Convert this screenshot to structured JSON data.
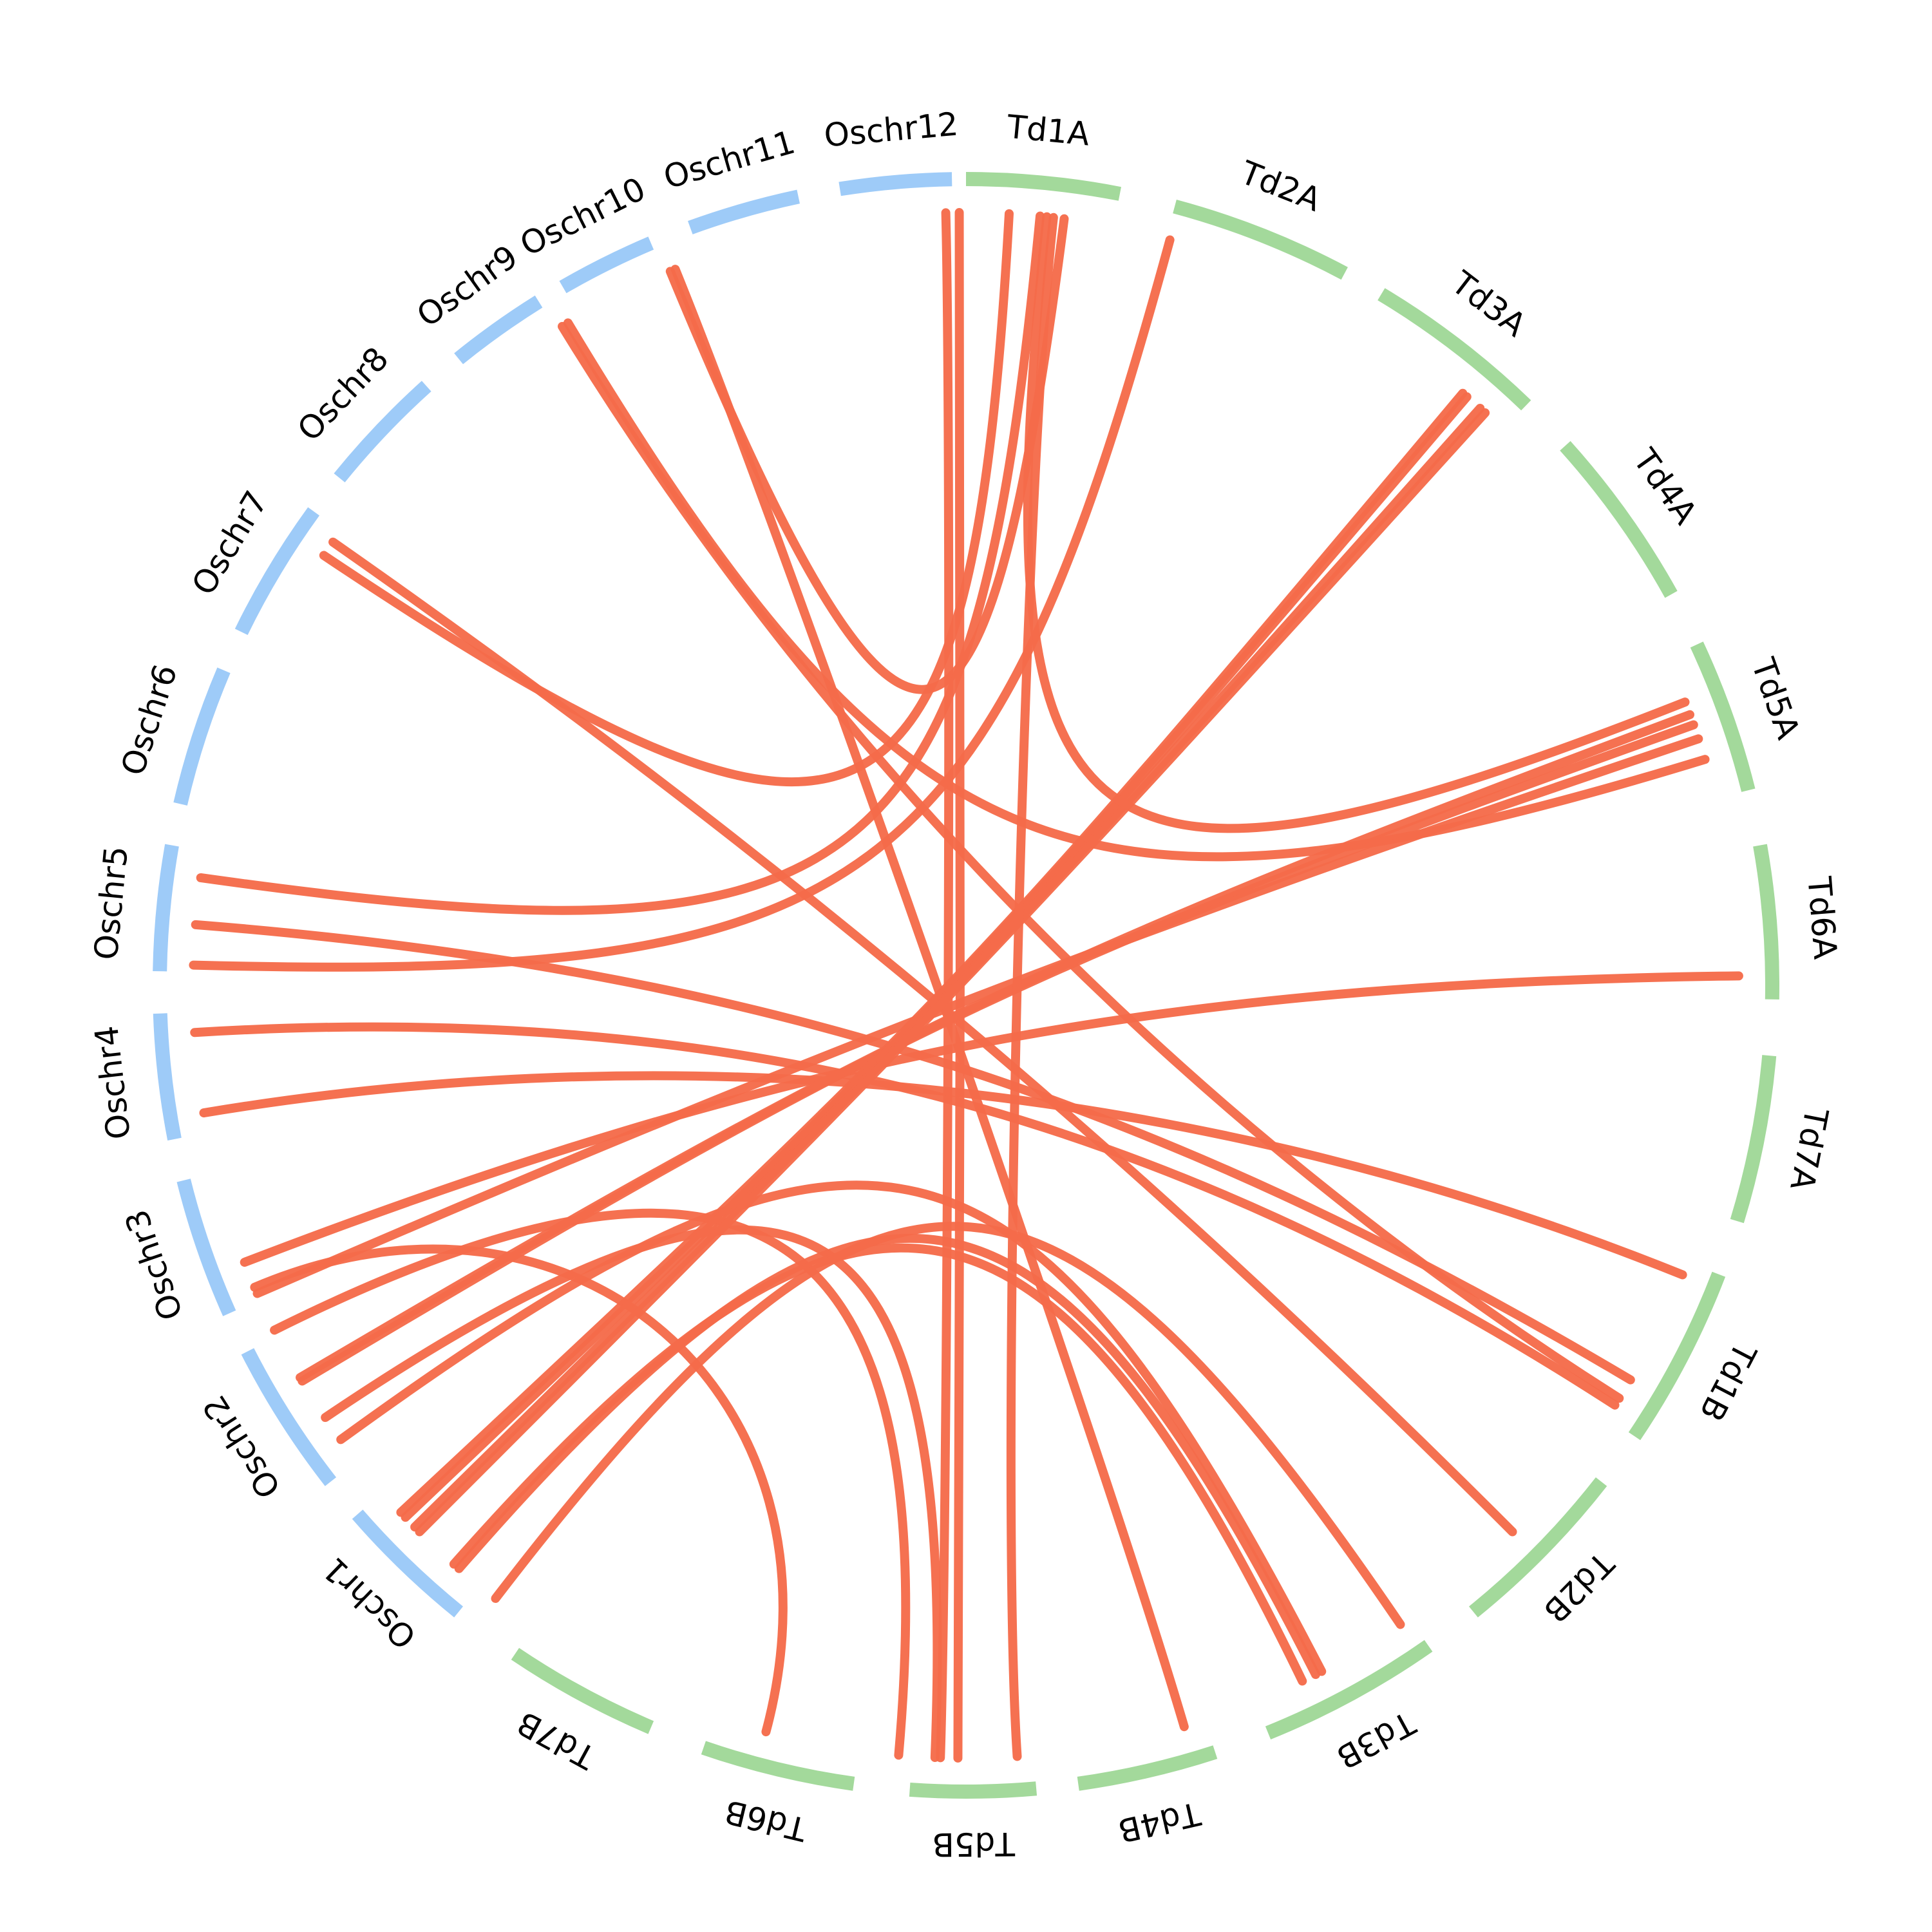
{
  "colors": {
    "rice": "#9ecbf8",
    "wheat": "#a3d99b",
    "link": "#f56b4a",
    "text": "#000000"
  },
  "chromosomes": [
    {
      "id": "Oschr1",
      "label": "Oschr1",
      "group": "rice"
    },
    {
      "id": "Oschr2",
      "label": "Oschr2",
      "group": "rice"
    },
    {
      "id": "Oschr3",
      "label": "Oschr3",
      "group": "rice"
    },
    {
      "id": "Oschr4",
      "label": "Oschr4",
      "group": "rice"
    },
    {
      "id": "Oschr5",
      "label": "Oschr5",
      "group": "rice"
    },
    {
      "id": "Oschr6",
      "label": "Oschr6",
      "group": "rice"
    },
    {
      "id": "Oschr7",
      "label": "Oschr7",
      "group": "rice"
    },
    {
      "id": "Oschr8",
      "label": "Oschr8",
      "group": "rice"
    },
    {
      "id": "Oschr9",
      "label": "Oschr9",
      "group": "rice"
    },
    {
      "id": "Oschr10",
      "label": "Oschr10",
      "group": "rice"
    },
    {
      "id": "Oschr11",
      "label": "Oschr11",
      "group": "rice"
    },
    {
      "id": "Oschr12",
      "label": "Oschr12",
      "group": "rice"
    },
    {
      "id": "Td1A",
      "label": "Td1A",
      "group": "wheat"
    },
    {
      "id": "Td2A",
      "label": "Td2A",
      "group": "wheat"
    },
    {
      "id": "Td3A",
      "label": "Td3A",
      "group": "wheat"
    },
    {
      "id": "Td4A",
      "label": "Td4A",
      "group": "wheat"
    },
    {
      "id": "Td5A",
      "label": "Td5A",
      "group": "wheat"
    },
    {
      "id": "Td6A",
      "label": "Td6A",
      "group": "wheat"
    },
    {
      "id": "Td7A",
      "label": "Td7A",
      "group": "wheat"
    },
    {
      "id": "Td1B",
      "label": "Td1B",
      "group": "wheat"
    },
    {
      "id": "Td2B",
      "label": "Td2B",
      "group": "wheat"
    },
    {
      "id": "Td3B",
      "label": "Td3B",
      "group": "wheat"
    },
    {
      "id": "Td4B",
      "label": "Td4B",
      "group": "wheat"
    },
    {
      "id": "Td5B",
      "label": "Td5B",
      "group": "wheat"
    },
    {
      "id": "Td6B",
      "label": "Td6B",
      "group": "wheat"
    },
    {
      "id": "Td7B",
      "label": "Td7B",
      "group": "wheat"
    }
  ],
  "links": [
    {
      "from": "Oschr12",
      "to": "Td5B"
    },
    {
      "from": "Oschr12",
      "to": "Td5B"
    },
    {
      "from": "Oschr11",
      "to": "Td1A"
    },
    {
      "from": "Oschr11",
      "to": "Td4B"
    },
    {
      "from": "Oschr9",
      "to": "Td1B"
    },
    {
      "from": "Oschr9",
      "to": "Td5A"
    },
    {
      "from": "Oschr7",
      "to": "Td2B"
    },
    {
      "from": "Oschr7",
      "to": "Td1A"
    },
    {
      "from": "Oschr5",
      "to": "Td1A"
    },
    {
      "from": "Oschr5",
      "to": "Td1B"
    },
    {
      "from": "Oschr5",
      "to": "Td2A"
    },
    {
      "from": "Oschr4",
      "to": "Td1B"
    },
    {
      "from": "Oschr4",
      "to": "Td7A"
    },
    {
      "from": "Oschr3",
      "to": "Td6A"
    },
    {
      "from": "Oschr3",
      "to": "Td5A"
    },
    {
      "from": "Oschr3",
      "to": "Td5B"
    },
    {
      "from": "Oschr2",
      "to": "Td5A"
    },
    {
      "from": "Oschr2",
      "to": "Td5A"
    },
    {
      "from": "Oschr2",
      "to": "Td5B"
    },
    {
      "from": "Oschr2",
      "to": "Td3B"
    },
    {
      "from": "Oschr2",
      "to": "Td6B"
    },
    {
      "from": "Oschr1",
      "to": "Td3A"
    },
    {
      "from": "Oschr1",
      "to": "Td3A"
    },
    {
      "from": "Oschr1",
      "to": "Td3A"
    },
    {
      "from": "Oschr1",
      "to": "Td3A"
    },
    {
      "from": "Oschr1",
      "to": "Td3B"
    },
    {
      "from": "Oschr1",
      "to": "Td3B"
    },
    {
      "from": "Oschr1",
      "to": "Td2B"
    },
    {
      "from": "Td1A",
      "to": "Td5A"
    },
    {
      "from": "Td1A",
      "to": "Td5B"
    }
  ]
}
